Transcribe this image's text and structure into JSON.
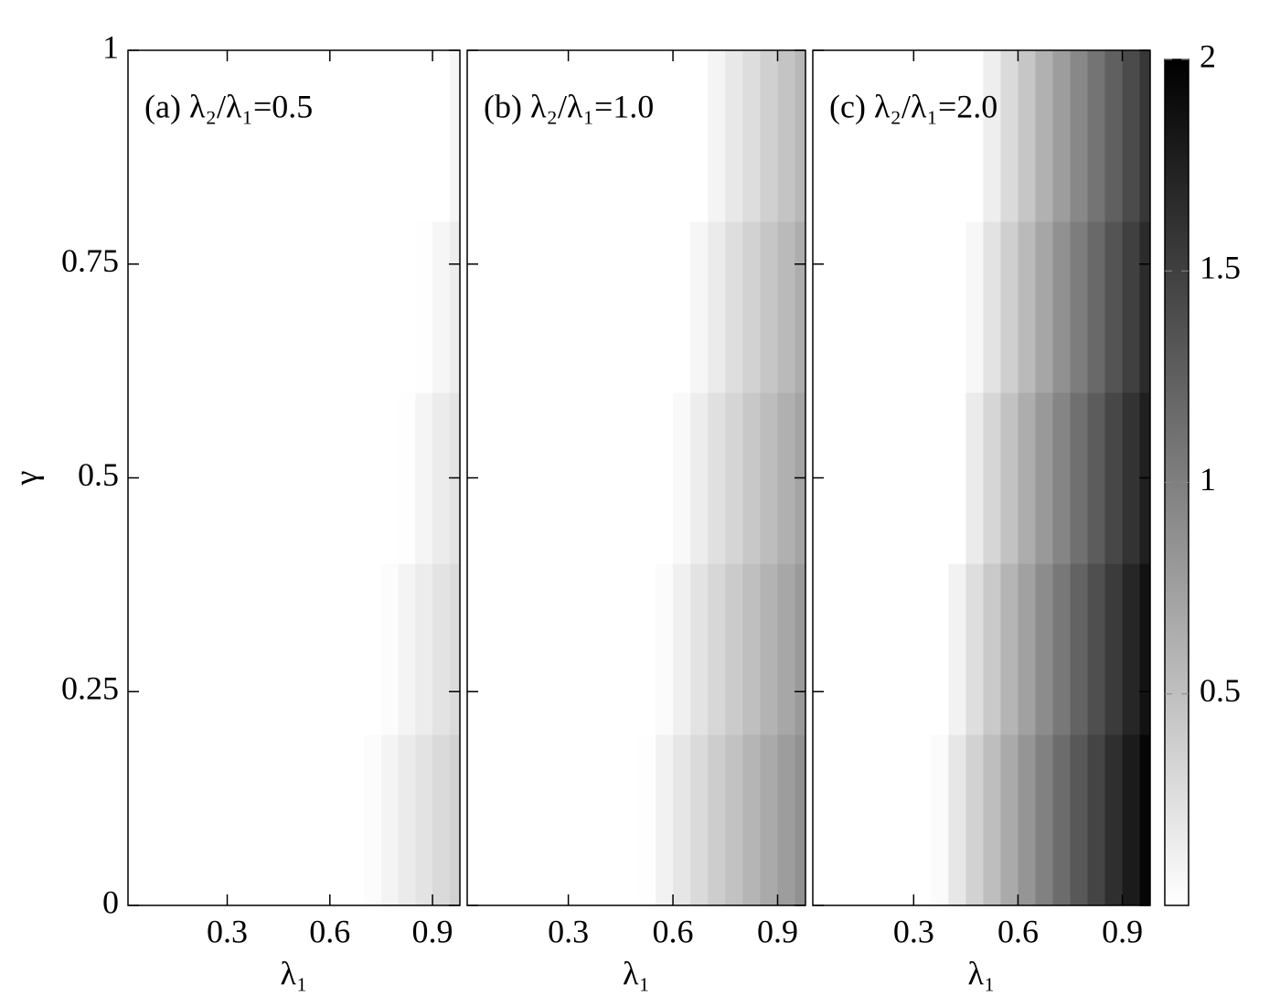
{
  "chart_data": [
    {
      "type": "heatmap",
      "title": "(a) λ₂/λ₁=0.5",
      "xlabel": "λ₁",
      "ylabel": "γ",
      "xlim": [
        0.01,
        0.98
      ],
      "ylim": [
        0,
        1
      ],
      "xticks": [
        0.3,
        0.6,
        0.9
      ],
      "yticks": [
        0,
        0.25,
        0.5,
        0.75,
        1
      ],
      "colormap": [
        "#ffffff",
        "#000000"
      ],
      "x": [
        0.025,
        0.075,
        0.125,
        0.175,
        0.225,
        0.275,
        0.325,
        0.375,
        0.425,
        0.475,
        0.525,
        0.575,
        0.625,
        0.675,
        0.725,
        0.775,
        0.825,
        0.875,
        0.925,
        0.975
      ],
      "y": [
        0.1,
        0.3,
        0.5,
        0.7,
        0.9
      ],
      "z": [
        [
          0,
          0,
          0,
          0,
          0,
          0,
          0,
          0,
          0,
          0,
          0,
          0,
          0,
          0,
          0.02,
          0.09,
          0.16,
          0.22,
          0.29,
          0.36
        ],
        [
          0,
          0,
          0,
          0,
          0,
          0,
          0,
          0,
          0,
          0,
          0,
          0,
          0,
          0,
          0,
          0.02,
          0.09,
          0.15,
          0.22,
          0.28
        ],
        [
          0,
          0,
          0,
          0,
          0,
          0,
          0,
          0,
          0,
          0,
          0,
          0,
          0,
          0,
          0,
          0,
          0.01,
          0.08,
          0.15,
          0.21
        ],
        [
          0,
          0,
          0,
          0,
          0,
          0,
          0,
          0,
          0,
          0,
          0,
          0,
          0,
          0,
          0,
          0,
          0,
          0.01,
          0.07,
          0.14
        ],
        [
          0,
          0,
          0,
          0,
          0,
          0,
          0,
          0,
          0,
          0,
          0,
          0,
          0,
          0,
          0,
          0,
          0,
          0,
          0,
          0.07
        ]
      ]
    },
    {
      "type": "heatmap",
      "title": "(b) λ₂/λ₁=1.0",
      "xlabel": "λ₁",
      "xlim": [
        0.01,
        0.98
      ],
      "ylim": [
        0,
        1
      ],
      "xticks": [
        0.3,
        0.6,
        0.9
      ],
      "colormap": [
        "#ffffff",
        "#000000"
      ],
      "x": [
        0.025,
        0.075,
        0.125,
        0.175,
        0.225,
        0.275,
        0.325,
        0.375,
        0.425,
        0.475,
        0.525,
        0.575,
        0.625,
        0.675,
        0.725,
        0.775,
        0.825,
        0.875,
        0.925,
        0.975
      ],
      "y": [
        0.1,
        0.3,
        0.5,
        0.7,
        0.9
      ],
      "z": [
        [
          0,
          0,
          0,
          0,
          0,
          0,
          0,
          0,
          0,
          0,
          0.01,
          0.1,
          0.2,
          0.29,
          0.39,
          0.48,
          0.58,
          0.67,
          0.77,
          0.86
        ],
        [
          0,
          0,
          0,
          0,
          0,
          0,
          0,
          0,
          0,
          0,
          0,
          0.03,
          0.12,
          0.22,
          0.31,
          0.41,
          0.5,
          0.6,
          0.69,
          0.79
        ],
        [
          0,
          0,
          0,
          0,
          0,
          0,
          0,
          0,
          0,
          0,
          0,
          0,
          0.05,
          0.14,
          0.24,
          0.33,
          0.43,
          0.52,
          0.62,
          0.71
        ],
        [
          0,
          0,
          0,
          0,
          0,
          0,
          0,
          0,
          0,
          0,
          0,
          0,
          0,
          0.07,
          0.16,
          0.26,
          0.35,
          0.45,
          0.54,
          0.64
        ],
        [
          0,
          0,
          0,
          0,
          0,
          0,
          0,
          0,
          0,
          0,
          0,
          0,
          0,
          0,
          0.09,
          0.18,
          0.27,
          0.37,
          0.46,
          0.56
        ]
      ]
    },
    {
      "type": "heatmap",
      "title": "(c) λ₂/λ₁=2.0",
      "xlabel": "λ₁",
      "xlim": [
        0.01,
        0.98
      ],
      "ylim": [
        0,
        1
      ],
      "xticks": [
        0.3,
        0.6,
        0.9
      ],
      "colormap": [
        "#ffffff",
        "#000000"
      ],
      "clim": [
        0,
        2
      ],
      "cticks": [
        0.5,
        1,
        1.5,
        2
      ],
      "x": [
        0.025,
        0.075,
        0.125,
        0.175,
        0.225,
        0.275,
        0.325,
        0.375,
        0.425,
        0.475,
        0.525,
        0.575,
        0.625,
        0.675,
        0.725,
        0.775,
        0.825,
        0.875,
        0.925,
        0.975
      ],
      "y": [
        0.1,
        0.3,
        0.5,
        0.7,
        0.9
      ],
      "z": [
        [
          0,
          0,
          0,
          0,
          0,
          0,
          0,
          0.03,
          0.19,
          0.35,
          0.51,
          0.67,
          0.83,
          0.99,
          1.15,
          1.31,
          1.47,
          1.63,
          1.79,
          1.95
        ],
        [
          0,
          0,
          0,
          0,
          0,
          0,
          0,
          0,
          0.1,
          0.26,
          0.42,
          0.58,
          0.74,
          0.9,
          1.06,
          1.22,
          1.38,
          1.54,
          1.7,
          1.86
        ],
        [
          0,
          0,
          0,
          0,
          0,
          0,
          0,
          0,
          0,
          0.16,
          0.32,
          0.48,
          0.64,
          0.8,
          0.96,
          1.12,
          1.28,
          1.44,
          1.6,
          1.76
        ],
        [
          0,
          0,
          0,
          0,
          0,
          0,
          0,
          0,
          0,
          0.06,
          0.22,
          0.38,
          0.54,
          0.7,
          0.86,
          1.02,
          1.18,
          1.34,
          1.5,
          1.66
        ],
        [
          0,
          0,
          0,
          0,
          0,
          0,
          0,
          0,
          0,
          0,
          0.13,
          0.29,
          0.45,
          0.61,
          0.77,
          0.93,
          1.09,
          1.25,
          1.41,
          1.57
        ]
      ]
    }
  ]
}
